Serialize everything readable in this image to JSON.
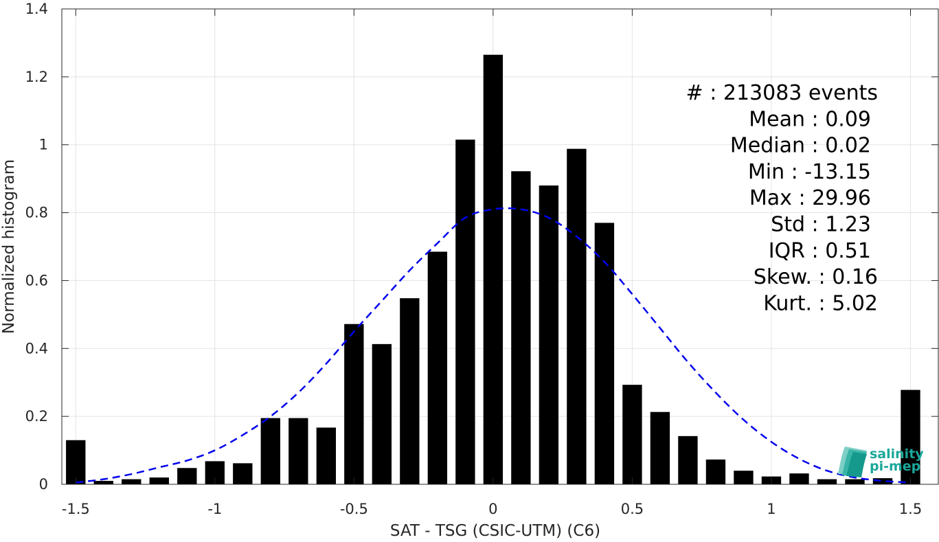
{
  "chart_data": {
    "type": "bar",
    "xlabel": "SAT - TSG (CSIC-UTM) (C6)",
    "ylabel": "Normalized histogram",
    "xlim": [
      -1.55,
      1.6
    ],
    "ylim": [
      0,
      1.4
    ],
    "xticks": [
      -1.5,
      -1,
      -0.5,
      0,
      0.5,
      1,
      1.5
    ],
    "xtick_labels": [
      "-1.5",
      "-1",
      "-0.5",
      "0",
      "0.5",
      "1",
      "1.5"
    ],
    "yticks": [
      0,
      0.2,
      0.4,
      0.6,
      0.8,
      1,
      1.2,
      1.4
    ],
    "ytick_labels": [
      "0",
      "0.2",
      "0.4",
      "0.6",
      "0.8",
      "1",
      "1.2",
      "1.4"
    ],
    "grid": true,
    "bar_width": 0.07,
    "bars": {
      "x": [
        -1.5,
        -1.4,
        -1.3,
        -1.2,
        -1.1,
        -1.0,
        -0.9,
        -0.8,
        -0.7,
        -0.6,
        -0.5,
        -0.4,
        -0.3,
        -0.2,
        -0.1,
        0.0,
        0.1,
        0.2,
        0.3,
        0.4,
        0.5,
        0.6,
        0.7,
        0.8,
        0.9,
        1.0,
        1.1,
        1.2,
        1.3,
        1.4,
        1.5
      ],
      "values": [
        0.13,
        0.01,
        0.015,
        0.02,
        0.048,
        0.068,
        0.062,
        0.195,
        0.195,
        0.167,
        0.472,
        0.413,
        0.548,
        0.685,
        1.015,
        1.265,
        0.922,
        0.88,
        0.988,
        0.77,
        0.293,
        0.213,
        0.142,
        0.073,
        0.04,
        0.023,
        0.032,
        0.015,
        0.015,
        0.018,
        0.278
      ],
      "color": "#000000"
    },
    "fit_curve": {
      "style": "dashed",
      "color": "#0000ee",
      "x": [
        -1.5,
        -1.4,
        -1.3,
        -1.2,
        -1.1,
        -1.0,
        -0.9,
        -0.8,
        -0.7,
        -0.6,
        -0.5,
        -0.4,
        -0.3,
        -0.2,
        -0.1,
        0.0,
        0.1,
        0.2,
        0.3,
        0.4,
        0.5,
        0.6,
        0.7,
        0.8,
        0.9,
        1.0,
        1.1,
        1.2,
        1.3,
        1.4,
        1.5
      ],
      "y": [
        0.005,
        0.015,
        0.03,
        0.05,
        0.07,
        0.1,
        0.145,
        0.2,
        0.27,
        0.355,
        0.45,
        0.54,
        0.63,
        0.71,
        0.785,
        0.81,
        0.81,
        0.785,
        0.73,
        0.655,
        0.56,
        0.46,
        0.36,
        0.27,
        0.19,
        0.125,
        0.075,
        0.04,
        0.02,
        0.01,
        0.005
      ]
    },
    "stats": [
      {
        "label": "#  : 213083 events"
      },
      {
        "label": "Mean : 0.09"
      },
      {
        "label": "Median : 0.02"
      },
      {
        "label": "Min : -13.15"
      },
      {
        "label": "Max : 29.96"
      },
      {
        "label": "Std : 1.23"
      },
      {
        "label": "IQR : 0.51"
      },
      {
        "label": "Skew. : 0.16"
      },
      {
        "label": "Kurt. : 5.02"
      }
    ]
  },
  "logo": {
    "line1": "salinity",
    "line2": "pi-mep",
    "color": "#1aa89a"
  }
}
